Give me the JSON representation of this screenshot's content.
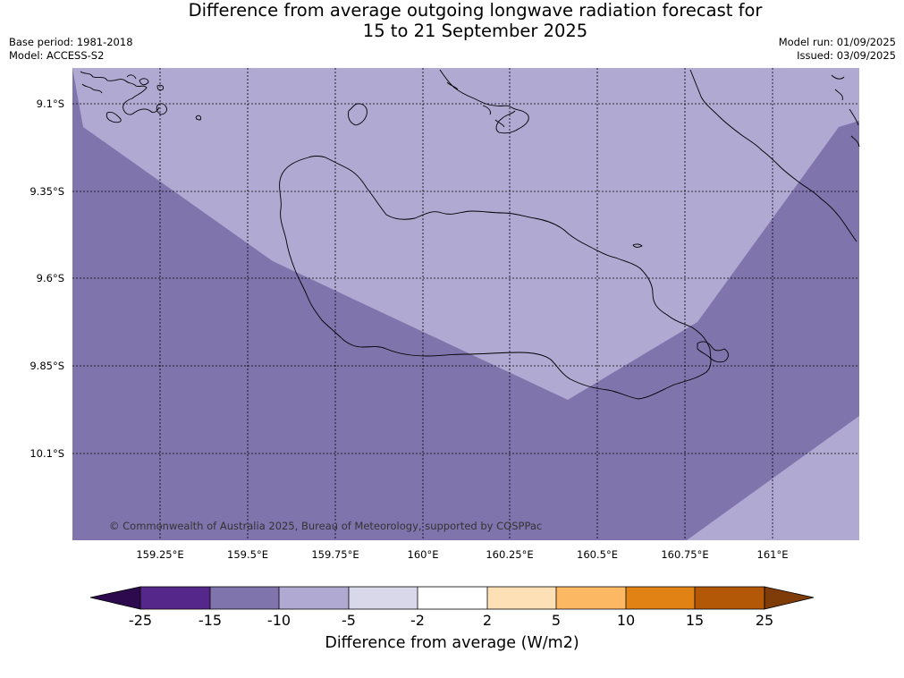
{
  "header": {
    "title_line1": "Difference from average outgoing longwave radiation forecast for",
    "title_line2": "15 to 21 September 2025",
    "base_period": "Base period: 1981-2018",
    "model": "Model: ACCESS-S2",
    "model_run": "Model run: 01/09/2025",
    "issued": "Issued: 03/09/2025"
  },
  "map": {
    "copyright": "© Commonwealth of Australia 2025, Bureau of Meteorology, supported by COSPPac",
    "lat_labels": [
      "9.1°S",
      "9.35°S",
      "9.6°S",
      "9.85°S",
      "10.1°S"
    ],
    "lon_labels": [
      "159.25°E",
      "159.5°E",
      "159.75°E",
      "160°E",
      "160.25°E",
      "160.5°E",
      "160.75°E",
      "161°E"
    ],
    "colors": {
      "band_-15_-10": "#8074ad",
      "band_-10_-5": "#b0a9d2",
      "coastline": "#000000"
    }
  },
  "colorbar": {
    "title": "Difference from average (W/m2)",
    "ticks": [
      "-25",
      "-15",
      "-10",
      "-5",
      "-2",
      "2",
      "5",
      "10",
      "15",
      "25"
    ],
    "colors": [
      "#2d0a4e",
      "#56278a",
      "#8074ad",
      "#b0a9d2",
      "#d9d8ea",
      "#ffffff",
      "#fee0b6",
      "#fdb863",
      "#e08214",
      "#b35806",
      "#7f3b08"
    ]
  }
}
